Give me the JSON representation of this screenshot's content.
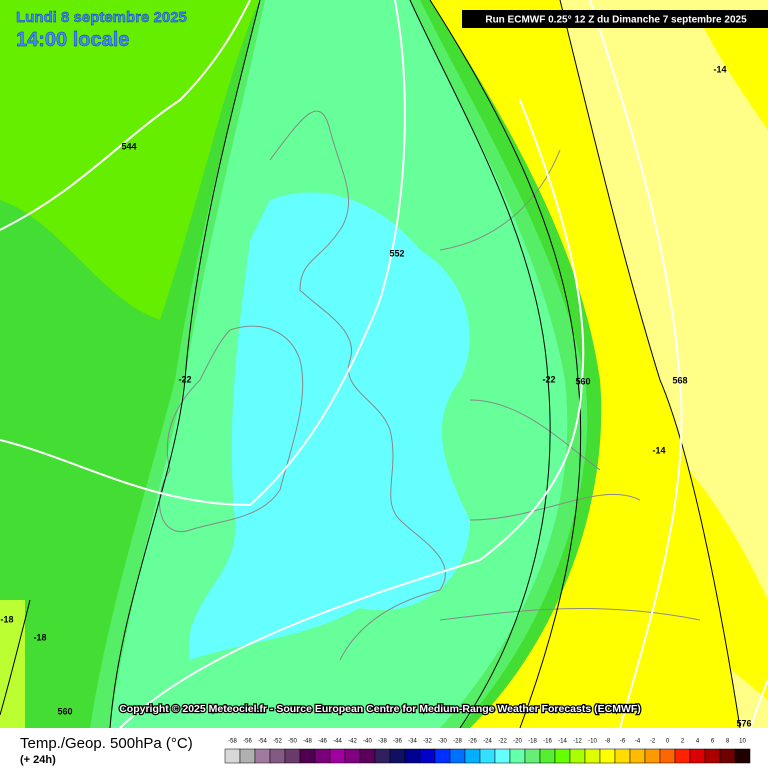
{
  "header": {
    "date": "Lundi 8 septembre 2025",
    "time": "14:00 locale",
    "run": "Run ECMWF 0.25° 12 Z du Dimanche 7 septembre 2025"
  },
  "copyright": "Copyright © 2025 Meteociel.fr - Source European Centre for Medium-Range Weather Forecasts (ECMWF)",
  "contour_labels": [
    "544",
    "552",
    "560",
    "560",
    "568",
    "576",
    "-22",
    "-22",
    "-18",
    "-18",
    "-14",
    "-14"
  ],
  "footer": {
    "title": "Temp./Geop. 500hPa (°C)",
    "lead": "(+ 24h)"
  },
  "legend": {
    "items": [
      {
        "label": "-58",
        "color": "#d8d8d8"
      },
      {
        "label": "-56",
        "color": "#b0b0b0"
      },
      {
        "label": "-54",
        "color": "#a07aa0"
      },
      {
        "label": "-52",
        "color": "#845a84"
      },
      {
        "label": "-50",
        "color": "#6a3a6a"
      },
      {
        "label": "-48",
        "color": "#500050"
      },
      {
        "label": "-46",
        "color": "#7a007a"
      },
      {
        "label": "-44",
        "color": "#a000a0"
      },
      {
        "label": "-42",
        "color": "#800080"
      },
      {
        "label": "-40",
        "color": "#5a005a"
      },
      {
        "label": "-38",
        "color": "#302060"
      },
      {
        "label": "-36",
        "color": "#101060"
      },
      {
        "label": "-34",
        "color": "#000090"
      },
      {
        "label": "-32",
        "color": "#0000c8"
      },
      {
        "label": "-30",
        "color": "#0030ff"
      },
      {
        "label": "-28",
        "color": "#0070ff"
      },
      {
        "label": "-26",
        "color": "#00b0ff"
      },
      {
        "label": "-24",
        "color": "#33e0ff"
      },
      {
        "label": "-22",
        "color": "#66ffff"
      },
      {
        "label": "-20",
        "color": "#66ffaa"
      },
      {
        "label": "-18",
        "color": "#66ee77"
      },
      {
        "label": "-16",
        "color": "#55ee33"
      },
      {
        "label": "-14",
        "color": "#66ff00"
      },
      {
        "label": "-12",
        "color": "#aaff00"
      },
      {
        "label": "-10",
        "color": "#ddff00"
      },
      {
        "label": "-8",
        "color": "#ffff00"
      },
      {
        "label": "-6",
        "color": "#ffdd00"
      },
      {
        "label": "-4",
        "color": "#ffbb00"
      },
      {
        "label": "-2",
        "color": "#ff9900"
      },
      {
        "label": "0",
        "color": "#ff6600"
      },
      {
        "label": "2",
        "color": "#ff2200"
      },
      {
        "label": "4",
        "color": "#dd0000"
      },
      {
        "label": "6",
        "color": "#aa0000"
      },
      {
        "label": "8",
        "color": "#700000"
      },
      {
        "label": "10",
        "color": "#200000"
      }
    ]
  }
}
